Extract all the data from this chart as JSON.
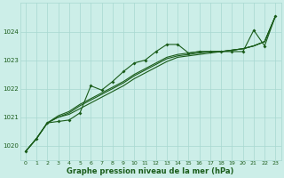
{
  "title": "Graphe pression niveau de la mer (hPa)",
  "background_color": "#cceee8",
  "grid_color": "#a8d8d0",
  "line_color": "#1a5c1a",
  "xlim": [
    -0.5,
    23.5
  ],
  "ylim": [
    1019.5,
    1025.0
  ],
  "yticks": [
    1020,
    1021,
    1022,
    1023,
    1024
  ],
  "xticks": [
    0,
    1,
    2,
    3,
    4,
    5,
    6,
    7,
    8,
    9,
    10,
    11,
    12,
    13,
    14,
    15,
    16,
    17,
    18,
    19,
    20,
    21,
    22,
    23
  ],
  "series1_x": [
    0,
    1,
    2,
    3,
    4,
    5,
    6,
    7,
    8,
    9,
    10,
    11,
    12,
    13,
    14,
    15,
    16,
    17,
    18,
    19,
    20,
    21,
    22,
    23
  ],
  "series1_y": [
    1019.8,
    1020.25,
    1020.8,
    1020.85,
    1020.9,
    1021.15,
    1022.1,
    1021.95,
    1022.25,
    1022.6,
    1022.9,
    1023.0,
    1023.3,
    1023.55,
    1023.55,
    1023.25,
    1023.3,
    1023.3,
    1023.3,
    1023.3,
    1023.3,
    1024.05,
    1023.5,
    1024.55
  ],
  "series2_x": [
    0,
    1,
    2,
    3,
    4,
    5,
    6,
    7,
    8,
    9,
    10,
    11,
    12,
    13,
    14,
    15,
    16,
    17,
    18,
    19,
    20,
    21,
    22,
    23
  ],
  "series2_y": [
    1019.8,
    1020.25,
    1020.8,
    1021.0,
    1021.15,
    1021.4,
    1021.6,
    1021.8,
    1022.0,
    1022.2,
    1022.45,
    1022.65,
    1022.85,
    1023.05,
    1023.15,
    1023.2,
    1023.25,
    1023.3,
    1023.3,
    1023.35,
    1023.4,
    1023.5,
    1023.65,
    1024.55
  ],
  "series3_x": [
    0,
    1,
    2,
    3,
    4,
    5,
    6,
    7,
    8,
    9,
    10,
    11,
    12,
    13,
    14,
    15,
    16,
    17,
    18,
    19,
    20,
    21,
    22,
    23
  ],
  "series3_y": [
    1019.8,
    1020.25,
    1020.8,
    1021.05,
    1021.2,
    1021.45,
    1021.65,
    1021.85,
    1022.05,
    1022.25,
    1022.5,
    1022.7,
    1022.9,
    1023.1,
    1023.2,
    1023.25,
    1023.3,
    1023.3,
    1023.3,
    1023.35,
    1023.4,
    1023.5,
    1023.65,
    1024.55
  ],
  "series4_x": [
    0,
    1,
    2,
    3,
    4,
    5,
    6,
    7,
    8,
    9,
    10,
    11,
    12,
    13,
    14,
    15,
    16,
    17,
    18,
    19,
    20,
    21,
    22,
    23
  ],
  "series4_y": [
    1019.8,
    1020.25,
    1020.8,
    1021.0,
    1021.1,
    1021.3,
    1021.5,
    1021.7,
    1021.9,
    1022.1,
    1022.35,
    1022.55,
    1022.75,
    1022.95,
    1023.1,
    1023.15,
    1023.2,
    1023.25,
    1023.3,
    1023.35,
    1023.4,
    1023.5,
    1023.65,
    1024.55
  ]
}
